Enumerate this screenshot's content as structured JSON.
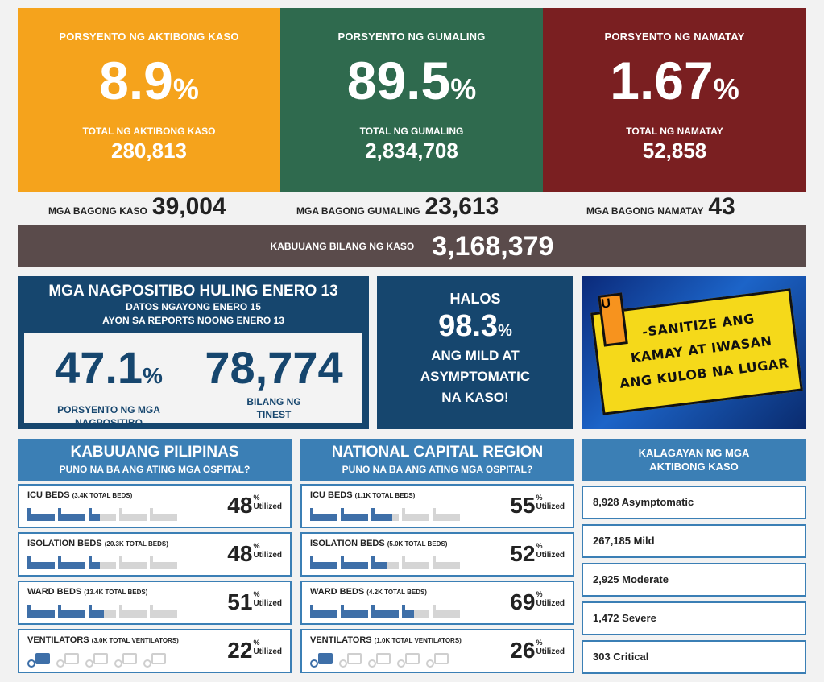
{
  "top": {
    "active": {
      "label": "PORSYENTO NG AKTIBONG KASO",
      "pct": "8.9",
      "pct_sign": "%",
      "total_label": "TOTAL NG AKTIBONG KASO",
      "total": "280,813",
      "color": "#f5a31c"
    },
    "recovered": {
      "label": "PORSYENTO NG GUMALING",
      "pct": "89.5",
      "pct_sign": "%",
      "total_label": "TOTAL NG GUMALING",
      "total": "2,834,708",
      "color": "#2f6a4e"
    },
    "died": {
      "label": "PORSYENTO NG NAMATAY",
      "pct": "1.67",
      "pct_sign": "%",
      "total_label": "TOTAL NG NAMATAY",
      "total": "52,858",
      "color": "#7a1f21"
    }
  },
  "new": {
    "cases_label": "MGA BAGONG KASO",
    "cases": "39,004",
    "recovered_label": "MGA BAGONG GUMALING",
    "recovered": "23,613",
    "died_label": "MGA BAGONG NAMATAY",
    "died": "43"
  },
  "total": {
    "label": "KABUUANG BILANG NG KASO",
    "value": "3,168,379"
  },
  "positives": {
    "heading": "MGA NAGPOSITIBO HULING ENERO 13",
    "sub1": "DATOS NGAYONG ENERO 15",
    "sub2": "AYON SA REPORTS NOONG ENERO 13",
    "rate_value": "47.1",
    "rate_sign": "%",
    "rate_label1": "PORSYENTO NG MGA",
    "rate_label2": "NAGPOSITIBO",
    "tested_value": "78,774",
    "tested_label1": "BILANG NG",
    "tested_label2": "TINEST"
  },
  "mild": {
    "line1": "HALOS",
    "value": "98.3",
    "sign": "%",
    "line2": "ANG MILD AT",
    "line3": "ASYMPTOMATIC",
    "line4": "NA KASO!"
  },
  "sanitize": {
    "u": "U",
    "line1": "-SANITIZE ANG",
    "line2": "KAMAY AT IWASAN",
    "line3": "ANG KULOB NA LUGAR"
  },
  "ph": {
    "title": "KABUUANG PILIPINAS",
    "subtitle": "PUNO NA BA ANG ATING MGA OSPITAL?",
    "rows": [
      {
        "name": "ICU BEDS",
        "total": "(3.4K TOTAL BEDS)",
        "pct": "48",
        "sign": "%",
        "util": "Utilized",
        "util_level": 0.48
      },
      {
        "name": "ISOLATION BEDS",
        "total": "(20.3K TOTAL BEDS)",
        "pct": "48",
        "sign": "%",
        "util": "Utilized",
        "util_level": 0.48
      },
      {
        "name": "WARD BEDS",
        "total": "(13.4K TOTAL BEDS)",
        "pct": "51",
        "sign": "%",
        "util": "Utilized",
        "util_level": 0.51
      },
      {
        "name": "VENTILATORS",
        "total": "(3.0K TOTAL VENTILATORS)",
        "pct": "22",
        "sign": "%",
        "util": "Utilized",
        "util_level": 0.22
      }
    ]
  },
  "ncr": {
    "title": "NATIONAL CAPITAL REGION",
    "subtitle": "PUNO NA BA ANG ATING MGA OSPITAL?",
    "rows": [
      {
        "name": "ICU BEDS",
        "total": "(1.1K TOTAL BEDS)",
        "pct": "55",
        "sign": "%",
        "util": "Utilized",
        "util_level": 0.55
      },
      {
        "name": "ISOLATION BEDS",
        "total": "(5.0K TOTAL BEDS)",
        "pct": "52",
        "sign": "%",
        "util": "Utilized",
        "util_level": 0.52
      },
      {
        "name": "WARD BEDS",
        "total": "(4.2K TOTAL BEDS)",
        "pct": "69",
        "sign": "%",
        "util": "Utilized",
        "util_level": 0.69
      },
      {
        "name": "VENTILATORS",
        "total": "(1.0K TOTAL VENTILATORS)",
        "pct": "26",
        "sign": "%",
        "util": "Utilized",
        "util_level": 0.26
      }
    ]
  },
  "status": {
    "title1": "KALAGAYAN NG MGA",
    "title2": "AKTIBONG KASO",
    "items": [
      "8,928 Asymptomatic",
      "267,185 Mild",
      "2,925 Moderate",
      "1,472 Severe",
      "303 Critical"
    ]
  }
}
